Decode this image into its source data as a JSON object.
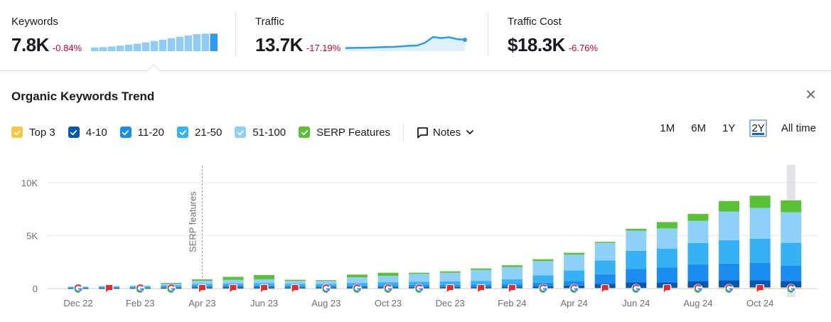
{
  "summary": {
    "keywords": {
      "label": "Keywords",
      "value": "7.8K",
      "delta": "-0.84%"
    },
    "traffic": {
      "label": "Traffic",
      "value": "13.7K",
      "delta": "-17.19%"
    },
    "traffic_cost": {
      "label": "Traffic Cost",
      "value": "$18.3K",
      "delta": "-6.76%"
    },
    "keywords_spark": [
      0.2,
      0.22,
      0.25,
      0.3,
      0.35,
      0.4,
      0.48,
      0.55,
      0.62,
      0.7,
      0.78,
      0.85,
      0.92,
      0.95,
      0.95
    ],
    "traffic_spark": [
      0.12,
      0.13,
      0.14,
      0.15,
      0.17,
      0.19,
      0.2,
      0.24,
      0.28,
      0.3,
      0.5,
      0.9,
      0.82,
      0.88,
      0.75,
      0.7
    ]
  },
  "trend": {
    "title": "Organic Keywords Trend",
    "close_icon": "close-icon",
    "legend": [
      {
        "label": "Top 3",
        "color": "#ffc540",
        "checked": true
      },
      {
        "label": "4-10",
        "color": "#0059b3",
        "checked": true
      },
      {
        "label": "11-20",
        "color": "#1a8ef0",
        "checked": true
      },
      {
        "label": "21-50",
        "color": "#35b1f5",
        "checked": true
      },
      {
        "label": "51-100",
        "color": "#8fd0fb",
        "checked": true
      },
      {
        "label": "SERP Features",
        "color": "#59c134",
        "checked": true
      }
    ],
    "notes_label": "Notes",
    "periods": [
      "1M",
      "6M",
      "1Y",
      "2Y",
      "All time"
    ],
    "active_period": "2Y"
  },
  "chart_data": {
    "type": "bar",
    "stacked": true,
    "ylim": [
      0,
      10000
    ],
    "yticks": [
      {
        "value": 0,
        "label": "0"
      },
      {
        "value": 5000,
        "label": "5K"
      },
      {
        "value": 10000,
        "label": "10K"
      }
    ],
    "x_tick_labels": [
      "Dec 22",
      "Feb 23",
      "Apr 23",
      "Jun 23",
      "Aug 23",
      "Oct 23",
      "Dec 23",
      "Feb 24",
      "Apr 24",
      "Jun 24",
      "Aug 24",
      "Oct 24"
    ],
    "x_tick_indices": [
      0,
      2,
      4,
      6,
      8,
      10,
      12,
      14,
      16,
      18,
      20,
      22
    ],
    "series_order": [
      "Top 3",
      "4-10",
      "11-20",
      "21-50",
      "51-100",
      "SERP Features"
    ],
    "series_colors": [
      "#ffc540",
      "#0059b3",
      "#1a8ef0",
      "#35b1f5",
      "#8fd0fb",
      "#59c134"
    ],
    "bars": [
      [
        10,
        30,
        40,
        60,
        60,
        0
      ],
      [
        10,
        40,
        50,
        70,
        80,
        0
      ],
      [
        10,
        50,
        60,
        80,
        90,
        0
      ],
      [
        10,
        60,
        90,
        150,
        200,
        30
      ],
      [
        20,
        100,
        120,
        200,
        300,
        130
      ],
      [
        20,
        110,
        140,
        220,
        330,
        290
      ],
      [
        20,
        110,
        150,
        230,
        370,
        400
      ],
      [
        20,
        100,
        130,
        200,
        280,
        100
      ],
      [
        20,
        100,
        130,
        200,
        280,
        70
      ],
      [
        20,
        110,
        150,
        250,
        540,
        250
      ],
      [
        30,
        120,
        170,
        280,
        600,
        300
      ],
      [
        30,
        120,
        190,
        300,
        750,
        110
      ],
      [
        30,
        120,
        200,
        320,
        830,
        130
      ],
      [
        30,
        130,
        220,
        350,
        1030,
        140
      ],
      [
        40,
        150,
        250,
        450,
        1150,
        160
      ],
      [
        40,
        160,
        350,
        700,
        1350,
        170
      ],
      [
        50,
        220,
        450,
        1000,
        1480,
        180
      ],
      [
        60,
        400,
        900,
        1300,
        1650,
        100
      ],
      [
        70,
        500,
        1300,
        1700,
        1900,
        180
      ],
      [
        80,
        500,
        1400,
        1800,
        1900,
        600
      ],
      [
        100,
        600,
        1600,
        2000,
        2100,
        650
      ],
      [
        120,
        650,
        1600,
        2200,
        2700,
        1000
      ],
      [
        120,
        650,
        1650,
        2300,
        2900,
        1150
      ],
      [
        120,
        600,
        1450,
        2150,
        2900,
        1100
      ]
    ],
    "markers": [
      "google",
      "flag",
      "google",
      "google",
      "flag",
      "flag",
      "flag",
      "flag",
      "google",
      "google",
      "google",
      "google",
      "flag",
      "flag",
      "flag",
      "google",
      "google",
      "flag",
      "google",
      "flag",
      "google",
      "google",
      "flag",
      "google"
    ],
    "annotation": {
      "label": "SERP features",
      "index": 4
    },
    "highlight_index": 23
  }
}
